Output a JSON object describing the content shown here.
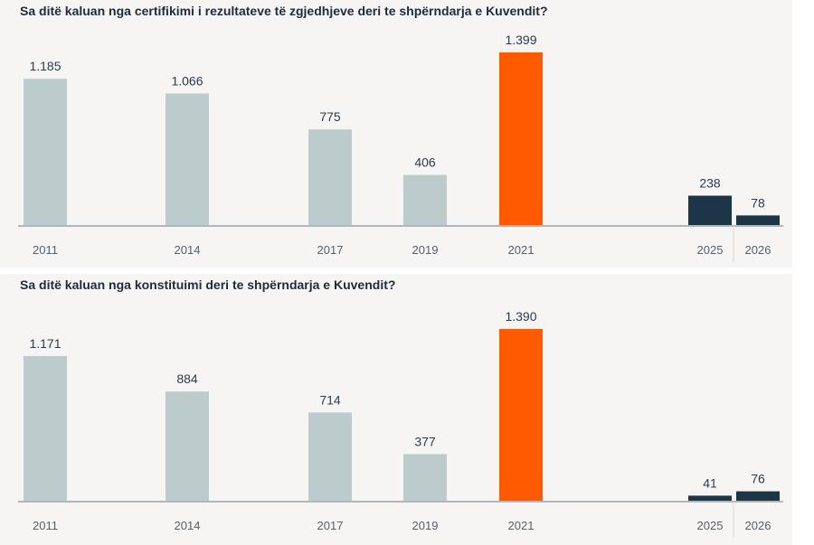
{
  "colors": {
    "historic": "#bccbcb",
    "highlight": "#ff5a00",
    "recent": "#1c3547",
    "axis": "#6b7680"
  },
  "chart_data": [
    {
      "type": "bar",
      "title": "Sa ditë kaluan nga certifikimi i rezultateve të zgjedhjeve deri te shpërndarja e Kuvendit?",
      "categories": [
        "2011",
        "2014",
        "2017",
        "2019",
        "2021",
        "2025",
        "2026"
      ],
      "values": [
        1185,
        1066,
        775,
        406,
        1399,
        238,
        78
      ],
      "value_labels": [
        "1.185",
        "1.066",
        "775",
        "406",
        "1.399",
        "238",
        "78"
      ],
      "bar_colors": [
        "historic",
        "historic",
        "historic",
        "historic",
        "highlight",
        "recent",
        "recent"
      ],
      "ylim": [
        0,
        1399
      ],
      "grid": false
    },
    {
      "type": "bar",
      "title": "Sa ditë kaluan nga konstituimi deri te shpërndarja e Kuvendit?",
      "categories": [
        "2011",
        "2014",
        "2017",
        "2019",
        "2021",
        "2025",
        "2026"
      ],
      "values": [
        1171,
        884,
        714,
        377,
        1390,
        41,
        76
      ],
      "value_labels": [
        "1.171",
        "884",
        "714",
        "377",
        "1.390",
        "41",
        "76"
      ],
      "bar_colors": [
        "historic",
        "historic",
        "historic",
        "historic",
        "highlight",
        "recent",
        "recent"
      ],
      "ylim": [
        0,
        1390
      ],
      "grid": false
    }
  ]
}
